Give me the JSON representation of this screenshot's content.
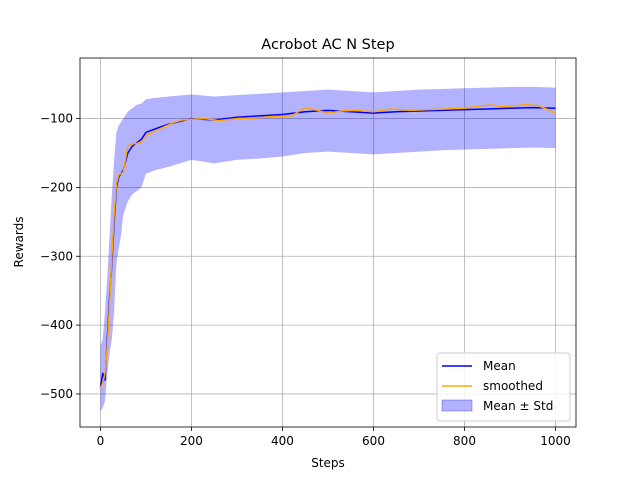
{
  "chart_data": {
    "type": "line",
    "title": "Acrobot AC N Step",
    "xlabel": "Steps",
    "ylabel": "Rewards",
    "xlim": [
      -45,
      1045
    ],
    "ylim": [
      -548,
      -12
    ],
    "xticks": [
      0,
      200,
      400,
      600,
      800,
      1000
    ],
    "yticks": [
      -500,
      -400,
      -300,
      -200,
      -100
    ],
    "ytick_labels": [
      "−500",
      "−400",
      "−300",
      "−200",
      "−100"
    ],
    "grid": true,
    "legend_position": "lower-right",
    "colors": {
      "mean": "#0000ff",
      "smoothed": "#ffa500",
      "band": "#0000ff"
    },
    "series": [
      {
        "name": "Mean",
        "x": [
          0,
          5,
          10,
          15,
          20,
          25,
          30,
          35,
          40,
          45,
          50,
          60,
          70,
          80,
          90,
          100,
          120,
          150,
          200,
          250,
          300,
          350,
          400,
          450,
          500,
          550,
          600,
          650,
          700,
          750,
          800,
          850,
          900,
          950,
          1000
        ],
        "y": [
          -490,
          -470,
          -480,
          -420,
          -360,
          -310,
          -250,
          -200,
          -185,
          -180,
          -175,
          -150,
          -140,
          -135,
          -130,
          -120,
          -115,
          -108,
          -100,
          -102,
          -98,
          -96,
          -94,
          -90,
          -88,
          -90,
          -92,
          -90,
          -89,
          -88,
          -87,
          -86,
          -85,
          -84,
          -85
        ]
      },
      {
        "name": "smoothed",
        "x": [
          0,
          5,
          10,
          15,
          20,
          25,
          30,
          35,
          40,
          45,
          50,
          60,
          70,
          80,
          90,
          100,
          110,
          120,
          140,
          160,
          180,
          200,
          230,
          260,
          300,
          340,
          380,
          420,
          450,
          470,
          500,
          530,
          560,
          600,
          640,
          680,
          720,
          760,
          800,
          830,
          860,
          880,
          900,
          930,
          960,
          980,
          1000
        ],
        "y": [
          -490,
          -485,
          -470,
          -430,
          -370,
          -300,
          -240,
          -195,
          -182,
          -180,
          -178,
          -140,
          -137,
          -136,
          -134,
          -125,
          -121,
          -118,
          -112,
          -106,
          -102,
          -101,
          -100,
          -103,
          -100,
          -99,
          -97,
          -96,
          -84,
          -87,
          -92,
          -89,
          -88,
          -90,
          -86,
          -88,
          -87,
          -86,
          -85,
          -82,
          -80,
          -83,
          -82,
          -80,
          -81,
          -86,
          -92
        ]
      },
      {
        "name": "Mean ± Std",
        "x": [
          0,
          5,
          10,
          15,
          20,
          25,
          30,
          35,
          40,
          45,
          50,
          60,
          70,
          80,
          90,
          100,
          120,
          150,
          200,
          250,
          300,
          350,
          400,
          450,
          500,
          550,
          600,
          650,
          700,
          750,
          800,
          850,
          900,
          950,
          1000
        ],
        "y_upper": [
          -430,
          -420,
          -380,
          -330,
          -270,
          -210,
          -160,
          -120,
          -110,
          -105,
          -100,
          -90,
          -85,
          -80,
          -78,
          -72,
          -70,
          -68,
          -65,
          -68,
          -66,
          -64,
          -62,
          -60,
          -58,
          -60,
          -62,
          -60,
          -58,
          -57,
          -56,
          -55,
          -54,
          -54,
          -55
        ],
        "y_lower": [
          -525,
          -520,
          -510,
          -470,
          -440,
          -420,
          -380,
          -310,
          -290,
          -270,
          -240,
          -220,
          -210,
          -205,
          -200,
          -180,
          -175,
          -170,
          -160,
          -165,
          -160,
          -158,
          -155,
          -150,
          -148,
          -150,
          -152,
          -150,
          -148,
          -146,
          -145,
          -144,
          -143,
          -142,
          -143
        ]
      }
    ]
  }
}
